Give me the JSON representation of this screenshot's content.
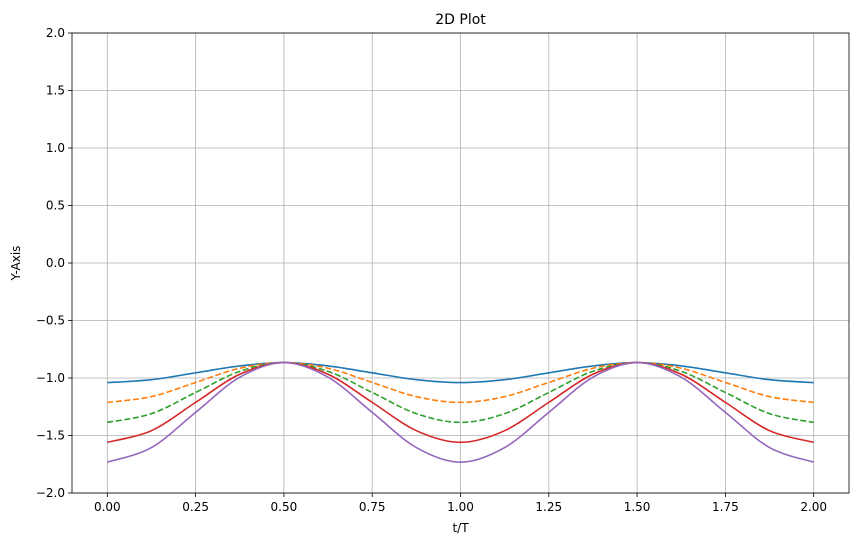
{
  "chart_data": {
    "type": "line",
    "title": "2D Plot",
    "xlabel": "t/T",
    "ylabel": "Y-Axis",
    "xlim": [
      -0.1,
      2.1
    ],
    "ylim": [
      -2.0,
      2.0
    ],
    "xticks": [
      0.0,
      0.25,
      0.5,
      0.75,
      1.0,
      1.25,
      1.5,
      1.75,
      2.0
    ],
    "xtick_labels": [
      "0.00",
      "0.25",
      "0.50",
      "0.75",
      "1.00",
      "1.25",
      "1.50",
      "1.75",
      "2.00"
    ],
    "yticks": [
      -2.0,
      -1.5,
      -1.0,
      -0.5,
      0.0,
      0.5,
      1.0,
      1.5,
      2.0
    ],
    "ytick_labels": [
      "−2.0",
      "−1.5",
      "−1.0",
      "−0.5",
      "0.0",
      "0.5",
      "1.0",
      "1.5",
      "2.0"
    ],
    "grid": true,
    "x": [
      0.0,
      0.125,
      0.25,
      0.375,
      0.5,
      0.625,
      0.75,
      0.875,
      1.0,
      1.125,
      1.25,
      1.375,
      1.5,
      1.625,
      1.75,
      1.875,
      2.0
    ],
    "series": [
      {
        "color": "#1f77b4",
        "dash": "solid",
        "values": [
          -1.04,
          -1.015,
          -0.955,
          -0.895,
          -0.866,
          -0.895,
          -0.955,
          -1.015,
          -1.04,
          -1.015,
          -0.955,
          -0.895,
          -0.866,
          -0.895,
          -0.955,
          -1.015,
          -1.04
        ]
      },
      {
        "color": "#ff7f0e",
        "dash": "dashed",
        "values": [
          -1.212,
          -1.162,
          -1.039,
          -0.915,
          -0.866,
          -0.915,
          -1.039,
          -1.162,
          -1.212,
          -1.162,
          -1.039,
          -0.915,
          -0.866,
          -0.915,
          -1.039,
          -1.162,
          -1.212
        ]
      },
      {
        "color": "#2ca02c",
        "dash": "dashed",
        "values": [
          -1.386,
          -1.31,
          -1.126,
          -0.942,
          -0.866,
          -0.942,
          -1.126,
          -1.31,
          -1.386,
          -1.31,
          -1.126,
          -0.942,
          -0.866,
          -0.942,
          -1.126,
          -1.31,
          -1.386
        ]
      },
      {
        "color": "#d62728",
        "dash": "solid",
        "values": [
          -1.559,
          -1.458,
          -1.212,
          -0.967,
          -0.866,
          -0.967,
          -1.212,
          -1.458,
          -1.559,
          -1.458,
          -1.212,
          -0.967,
          -0.866,
          -0.967,
          -1.212,
          -1.458,
          -1.559
        ]
      },
      {
        "color": "#9467bd",
        "dash": "solid",
        "values": [
          -1.732,
          -1.605,
          -1.299,
          -0.993,
          -0.866,
          -0.993,
          -1.299,
          -1.605,
          -1.732,
          -1.605,
          -1.299,
          -0.993,
          -0.866,
          -0.993,
          -1.299,
          -1.605,
          -1.732
        ]
      }
    ]
  }
}
